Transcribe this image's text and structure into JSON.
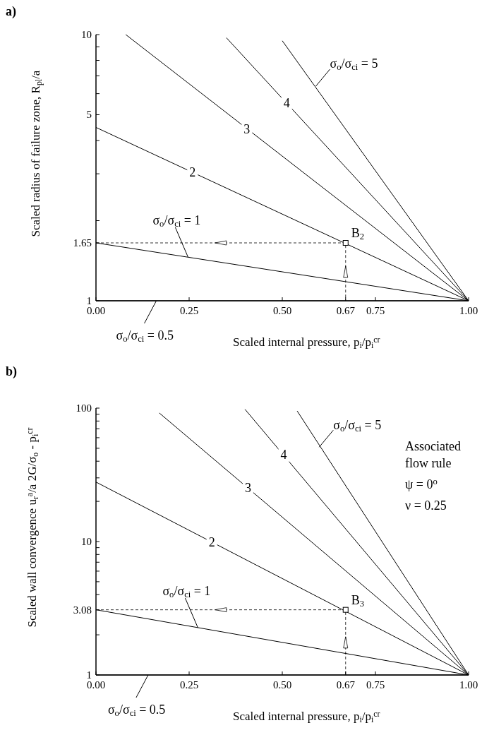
{
  "chart_data": [
    {
      "type": "line",
      "title": "a)",
      "xlabel": "Scaled internal pressure,  p$_{i}$/p$_{i}$$^{cr}$",
      "ylabel": "Scaled radius of failure zone,  R$_{pl}$/a",
      "log": "y",
      "xlim": [
        0,
        1
      ],
      "ylim": [
        1,
        10
      ],
      "xticks": [
        {
          "value": 0,
          "label": "0.00"
        },
        0.25,
        {
          "value": 0.5,
          "label": "0.50"
        },
        0.67,
        0.75,
        {
          "value": 1,
          "label": "1.00"
        }
      ],
      "yticks": [
        1,
        1.65,
        {
          "value": 2,
          "label": null
        },
        {
          "value": 3,
          "label": null
        },
        {
          "value": 4,
          "label": null
        },
        5,
        {
          "value": 6,
          "label": null
        },
        {
          "value": 7,
          "label": null
        },
        {
          "value": 8,
          "label": null
        },
        {
          "value": 9,
          "label": null
        },
        10
      ],
      "color": "#000000",
      "grid": false,
      "series": [
        {
          "x": [
            0,
            1
          ],
          "values": [
            1,
            1
          ]
        },
        {
          "x": [
            0,
            1
          ],
          "values": [
            1.65,
            1
          ]
        },
        {
          "x": [
            0,
            1
          ],
          "values": [
            4.48,
            1
          ]
        },
        {
          "x": [
            0.08,
            1
          ],
          "values": [
            10,
            1
          ]
        },
        {
          "x": [
            0.35,
            1
          ],
          "values": [
            9.73,
            1
          ]
        },
        {
          "x": [
            0.5,
            1
          ],
          "values": [
            9.48,
            1
          ]
        },
        {
          "x": [
            0,
            0.67,
            0.67
          ],
          "values": [
            1.65,
            1.65,
            1
          ],
          "line_style": "dashed"
        },
        {
          "type": "scatter",
          "name": "B$_{2}$",
          "x": [
            0.67
          ],
          "values": [
            1.65
          ],
          "marker": "square"
        }
      ],
      "annotations": [
        {
          "text": "σ$_{o}$/σ$_{ci}$ = 0.5",
          "x": 0.162,
          "y": 1
        },
        {
          "text": "σ$_{o}$/σ$_{ci}$ = 1",
          "x": 0.247,
          "y": 1.46
        },
        {
          "text": "2",
          "x": 0.259,
          "y": 3.04
        },
        {
          "text": "3",
          "x": 0.405,
          "y": 4.4
        },
        {
          "text": "4",
          "x": 0.512,
          "y": 5.52
        },
        {
          "text": "σ$_{o}$/σ$_{ci}$ = 5",
          "x": 0.59,
          "y": 6.4
        }
      ]
    },
    {
      "type": "line",
      "title": "b)",
      "xlabel": "Scaled internal pressure,  p$_{i}$/p$_{i}$$^{cr}$",
      "ylabel": "Scaled wall convergence  u$_{r}$$^{a}$/a  2G/σ$_{o}$ - p$_{i}$$^{cr}$",
      "log": "y",
      "xlim": [
        0,
        1
      ],
      "ylim": [
        1,
        100
      ],
      "xticks": [
        {
          "value": 0,
          "label": "0.00"
        },
        0.25,
        {
          "value": 0.5,
          "label": "0.50"
        },
        0.67,
        0.75,
        {
          "value": 1,
          "label": "1.00"
        }
      ],
      "yticks": [
        1,
        {
          "value": 2,
          "label": null
        },
        3.08,
        {
          "value": 4,
          "label": null
        },
        {
          "value": 5,
          "label": null
        },
        {
          "value": 6,
          "label": null
        },
        {
          "value": 7,
          "label": null
        },
        {
          "value": 8,
          "label": null
        },
        {
          "value": 9,
          "label": null
        },
        10,
        {
          "value": 20,
          "label": null
        },
        {
          "value": 30,
          "label": null
        },
        {
          "value": 40,
          "label": null
        },
        {
          "value": 50,
          "label": null
        },
        {
          "value": 60,
          "label": null
        },
        {
          "value": 70,
          "label": null
        },
        {
          "value": 80,
          "label": null
        },
        {
          "value": 90,
          "label": null
        },
        100
      ],
      "color": "#000000",
      "grid": false,
      "series": [
        {
          "x": [
            0,
            1
          ],
          "values": [
            1,
            1
          ]
        },
        {
          "x": [
            0,
            1
          ],
          "values": [
            3.08,
            1
          ]
        },
        {
          "x": [
            0,
            1
          ],
          "values": [
            27.9,
            1
          ]
        },
        {
          "x": [
            0.17,
            1
          ],
          "values": [
            91.9,
            1
          ]
        },
        {
          "x": [
            0.4,
            1
          ],
          "values": [
            97.9,
            1
          ]
        },
        {
          "x": [
            0.54,
            1
          ],
          "values": [
            95.1,
            1
          ]
        },
        {
          "x": [
            0,
            0.67,
            0.67
          ],
          "values": [
            3.08,
            3.08,
            1
          ],
          "line_style": "dashed"
        },
        {
          "type": "scatter",
          "name": "B$_{3}$",
          "x": [
            0.67
          ],
          "values": [
            3.08
          ],
          "marker": "square"
        }
      ],
      "annotations": [
        {
          "text": "σ$_{o}$/σ$_{ci}$ = 0.5",
          "x": 0.14,
          "y": 1
        },
        {
          "text": "σ$_{o}$/σ$_{ci}$ = 1",
          "x": 0.2735,
          "y": 2.26
        },
        {
          "text": "2",
          "x": 0.311,
          "y": 9.9
        },
        {
          "text": "3",
          "x": 0.408,
          "y": 25.2
        },
        {
          "text": "4",
          "x": 0.504,
          "y": 44.5
        },
        {
          "text": "σ$_{o}$/σ$_{ci}$ = 5",
          "x": 0.599,
          "y": 51
        },
        "Associated flow rule",
        "ψ = 0$^{o}$",
        "ν = 0.25"
      ]
    }
  ]
}
